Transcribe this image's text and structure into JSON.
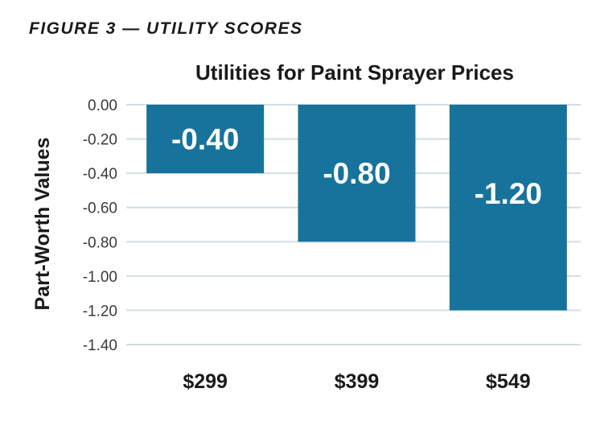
{
  "figure_label": "FIGURE 3 — UTILITY SCORES",
  "chart_data": {
    "type": "bar",
    "title": "Utilities for Paint Sprayer Prices",
    "xlabel": "",
    "ylabel": "Part-Worth Values",
    "categories": [
      "$299",
      "$399",
      "$549"
    ],
    "values": [
      -0.4,
      -0.8,
      -1.2
    ],
    "data_labels": [
      "-0.40",
      "-0.80",
      "-1.20"
    ],
    "ylim": [
      -1.4,
      0.0
    ],
    "yticks": [
      0.0,
      -0.2,
      -0.4,
      -0.6,
      -0.8,
      -1.0,
      -1.2,
      -1.4
    ],
    "ytick_labels": [
      "0.00",
      "-0.20",
      "-0.40",
      "-0.60",
      "-0.80",
      "-1.00",
      "-1.20",
      "-1.40"
    ],
    "grid": true,
    "legend": "none",
    "bar_color": "#17739c"
  }
}
